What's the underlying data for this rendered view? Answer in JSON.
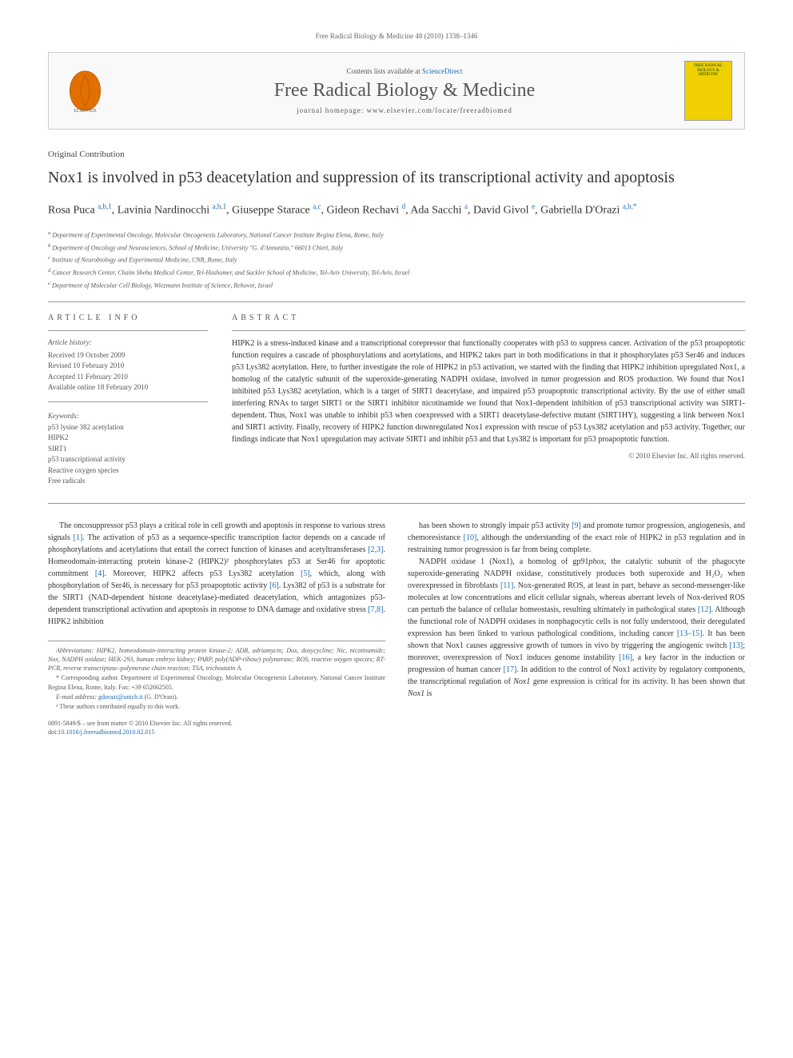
{
  "header_bar": "Free Radical Biology & Medicine 48 (2010) 1338–1346",
  "banner": {
    "contents_prefix": "Contents lists available at ",
    "contents_link": "ScienceDirect",
    "journal": "Free Radical Biology & Medicine",
    "homepage": "journal homepage: www.elsevier.com/locate/freeradbiomed",
    "publisher_logo_label": "ELSEVIER",
    "cover_text": "FREE RADICAL BIOLOGY & MEDICINE"
  },
  "type": "Original Contribution",
  "title": "Nox1 is involved in p53 deacetylation and suppression of its transcriptional activity and apoptosis",
  "authors_html": "Rosa Puca <sup>a,b,1</sup>, Lavinia Nardinocchi <sup>a,b,1</sup>, Giuseppe Starace <sup>a,c</sup>, Gideon Rechavi <sup>d</sup>, Ada Sacchi <sup>a</sup>, David Givol <sup>e</sup>, Gabriella D'Orazi <sup>a,b,*</sup>",
  "affiliations": [
    "a Department of Experimental Oncology, Molecular Oncogenesis Laboratory, National Cancer Institute Regina Elena, Rome, Italy",
    "b Department of Oncology and Neurosciences, School of Medicine, University \"G. d'Annunzio,\" 66013 Chieti, Italy",
    "c Institute of Neurobiology and Experimental Medicine, CNR, Rome, Italy",
    "d Cancer Research Center, Chaim Sheba Medical Center, Tel-Hashomer, and Sackler School of Medicine, Tel-Aviv University, Tel-Aviv, Israel",
    "e Department of Molecular Cell Biology, Wiezmann Institute of Science, Rehovot, Israel"
  ],
  "info": {
    "head": "ARTICLE INFO",
    "history_label": "Article history:",
    "history": [
      "Received 19 October 2009",
      "Revised 10 February 2010",
      "Accepted 11 February 2010",
      "Available online 18 February 2010"
    ],
    "keywords_label": "Keywords:",
    "keywords": [
      "p53 lysine 382 acetylation",
      "HIPK2",
      "SIRT1",
      "p53 transcriptional activity",
      "Reactive oxygen species",
      "Free radicals"
    ]
  },
  "abstract": {
    "head": "ABSTRACT",
    "text": "HIPK2 is a stress-induced kinase and a transcriptional corepressor that functionally cooperates with p53 to suppress cancer. Activation of the p53 proapoptotic function requires a cascade of phosphorylations and acetylations, and HIPK2 takes part in both modifications in that it phosphorylates p53 Ser46 and induces p53 Lys382 acetylation. Here, to further investigate the role of HIPK2 in p53 activation, we started with the finding that HIPK2 inhibition upregulated Nox1, a homolog of the catalytic subunit of the superoxide-generating NADPH oxidase, involved in tumor progression and ROS production. We found that Nox1 inhibited p53 Lys382 acetylation, which is a target of SIRT1 deacetylase, and impaired p53 proapoptotic transcriptional activity. By the use of either small interfering RNAs to target SIRT1 or the SIRT1 inhibitor nicotinamide we found that Nox1-dependent inhibition of p53 transcriptional activity was SIRT1-dependent. Thus, Nox1 was unable to inhibit p53 when coexpressed with a SIRT1 deacetylase-defective mutant (SIRT1HY), suggesting a link between Nox1 and SIRT1 activity. Finally, recovery of HIPK2 function downregulated Nox1 expression with rescue of p53 Lys382 acetylation and p53 activity. Together, our findings indicate that Nox1 upregulation may activate SIRT1 and inhibit p53 and that Lys382 is important for p53 proapoptotic function.",
    "copyright": "© 2010 Elsevier Inc. All rights reserved."
  },
  "body": {
    "left": "The oncosuppressor p53 plays a critical role in cell growth and apoptosis in response to various stress signals [1]. The activation of p53 as a sequence-specific transcription factor depends on a cascade of phosphorylations and acetylations that entail the correct function of kinases and acetyltransferases [2,3]. Homeodomain-interacting protein kinase-2 (HIPK2)² phosphorylates p53 at Ser46 for apoptotic commitment [4]. Moreover, HIPK2 affects p53 Lys382 acetylation [5], which, along with phosphorylation of Ser46, is necessary for p53 proapoptotic activity [6]. Lys382 of p53 is a substrate for the SIRT1 (NAD-dependent histone deacetylase)-mediated deacetylation, which antagonizes p53-dependent transcriptional activation and apoptosis in response to DNA damage and oxidative stress [7,8]. HIPK2 inhibition",
    "right": "has been shown to strongly impair p53 activity [9] and promote tumor progression, angiogenesis, and chemoresistance [10], although the understanding of the exact role of HIPK2 in p53 regulation and in restraining tumor progression is far from being complete.\n\nNADPH oxidase 1 (Nox1), a homolog of gp91phox, the catalytic subunit of the phagocyte superoxide-generating NADPH oxidase, constitutively produces both superoxide and H₂O₂ when overexpressed in fibroblasts [11]. Nox-generated ROS, at least in part, behave as second-messenger-like molecules at low concentrations and elicit cellular signals, whereas aberrant levels of Nox-derived ROS can perturb the balance of cellular homeostasis, resulting ultimately in pathological states [12]. Although the functional role of NADPH oxidases in nonphagocytic cells is not fully understood, their deregulated expression has been linked to various pathological conditions, including cancer [13–15]. It has been shown that Nox1 causes aggressive growth of tumors in vivo by triggering the angiogenic switch [13]; moreover, overexpression of Nox1 induces genome instability [16], a key factor in the induction or progression of human cancer [17]. In addition to the control of Nox1 activity by regulatory components, the transcriptional regulation of Nox1 gene expression is critical for its activity. It has been shown that Nox1 is"
  },
  "footnotes": {
    "abbrev": "Abbreviations: HIPK2, homeodomain-interacting protein kinase-2; ADR, adriamycin; Dox, doxycycline; Nic, nicotinamide; Nox, NADPH oxidase; HEK-293, human embryo kidney; PARP, poly(ADP-ribose) polymerase; ROS, reactive oxygen species; RT-PCR, reverse transcriptase–polymerase chain reaction; TSA, trichostatin A.",
    "corr": "* Corresponding author. Department of Experimental Oncology, Molecular Oncogenesis Laboratory, National Cancer Institute Regina Elena, Rome, Italy. Fax: +39 652662505.",
    "email_label": "E-mail address: ",
    "email": "gdorazi@unich.it",
    "email_suffix": " (G. D'Orazi).",
    "equal": "¹ These authors contributed equally to this work."
  },
  "doi": {
    "front_matter": "0891-5849/$ – see front matter © 2010 Elsevier Inc. All rights reserved.",
    "doi_label": "doi:",
    "doi": "10.1016/j.freeradbiomed.2010.02.015"
  },
  "refs": [
    "[1]",
    "[2,3]",
    "[4]",
    "[5]",
    "[6]",
    "[7,8]",
    "[9]",
    "[10]",
    "[11]",
    "[12]",
    "[13–15]",
    "[13]",
    "[16]",
    "[17]"
  ]
}
